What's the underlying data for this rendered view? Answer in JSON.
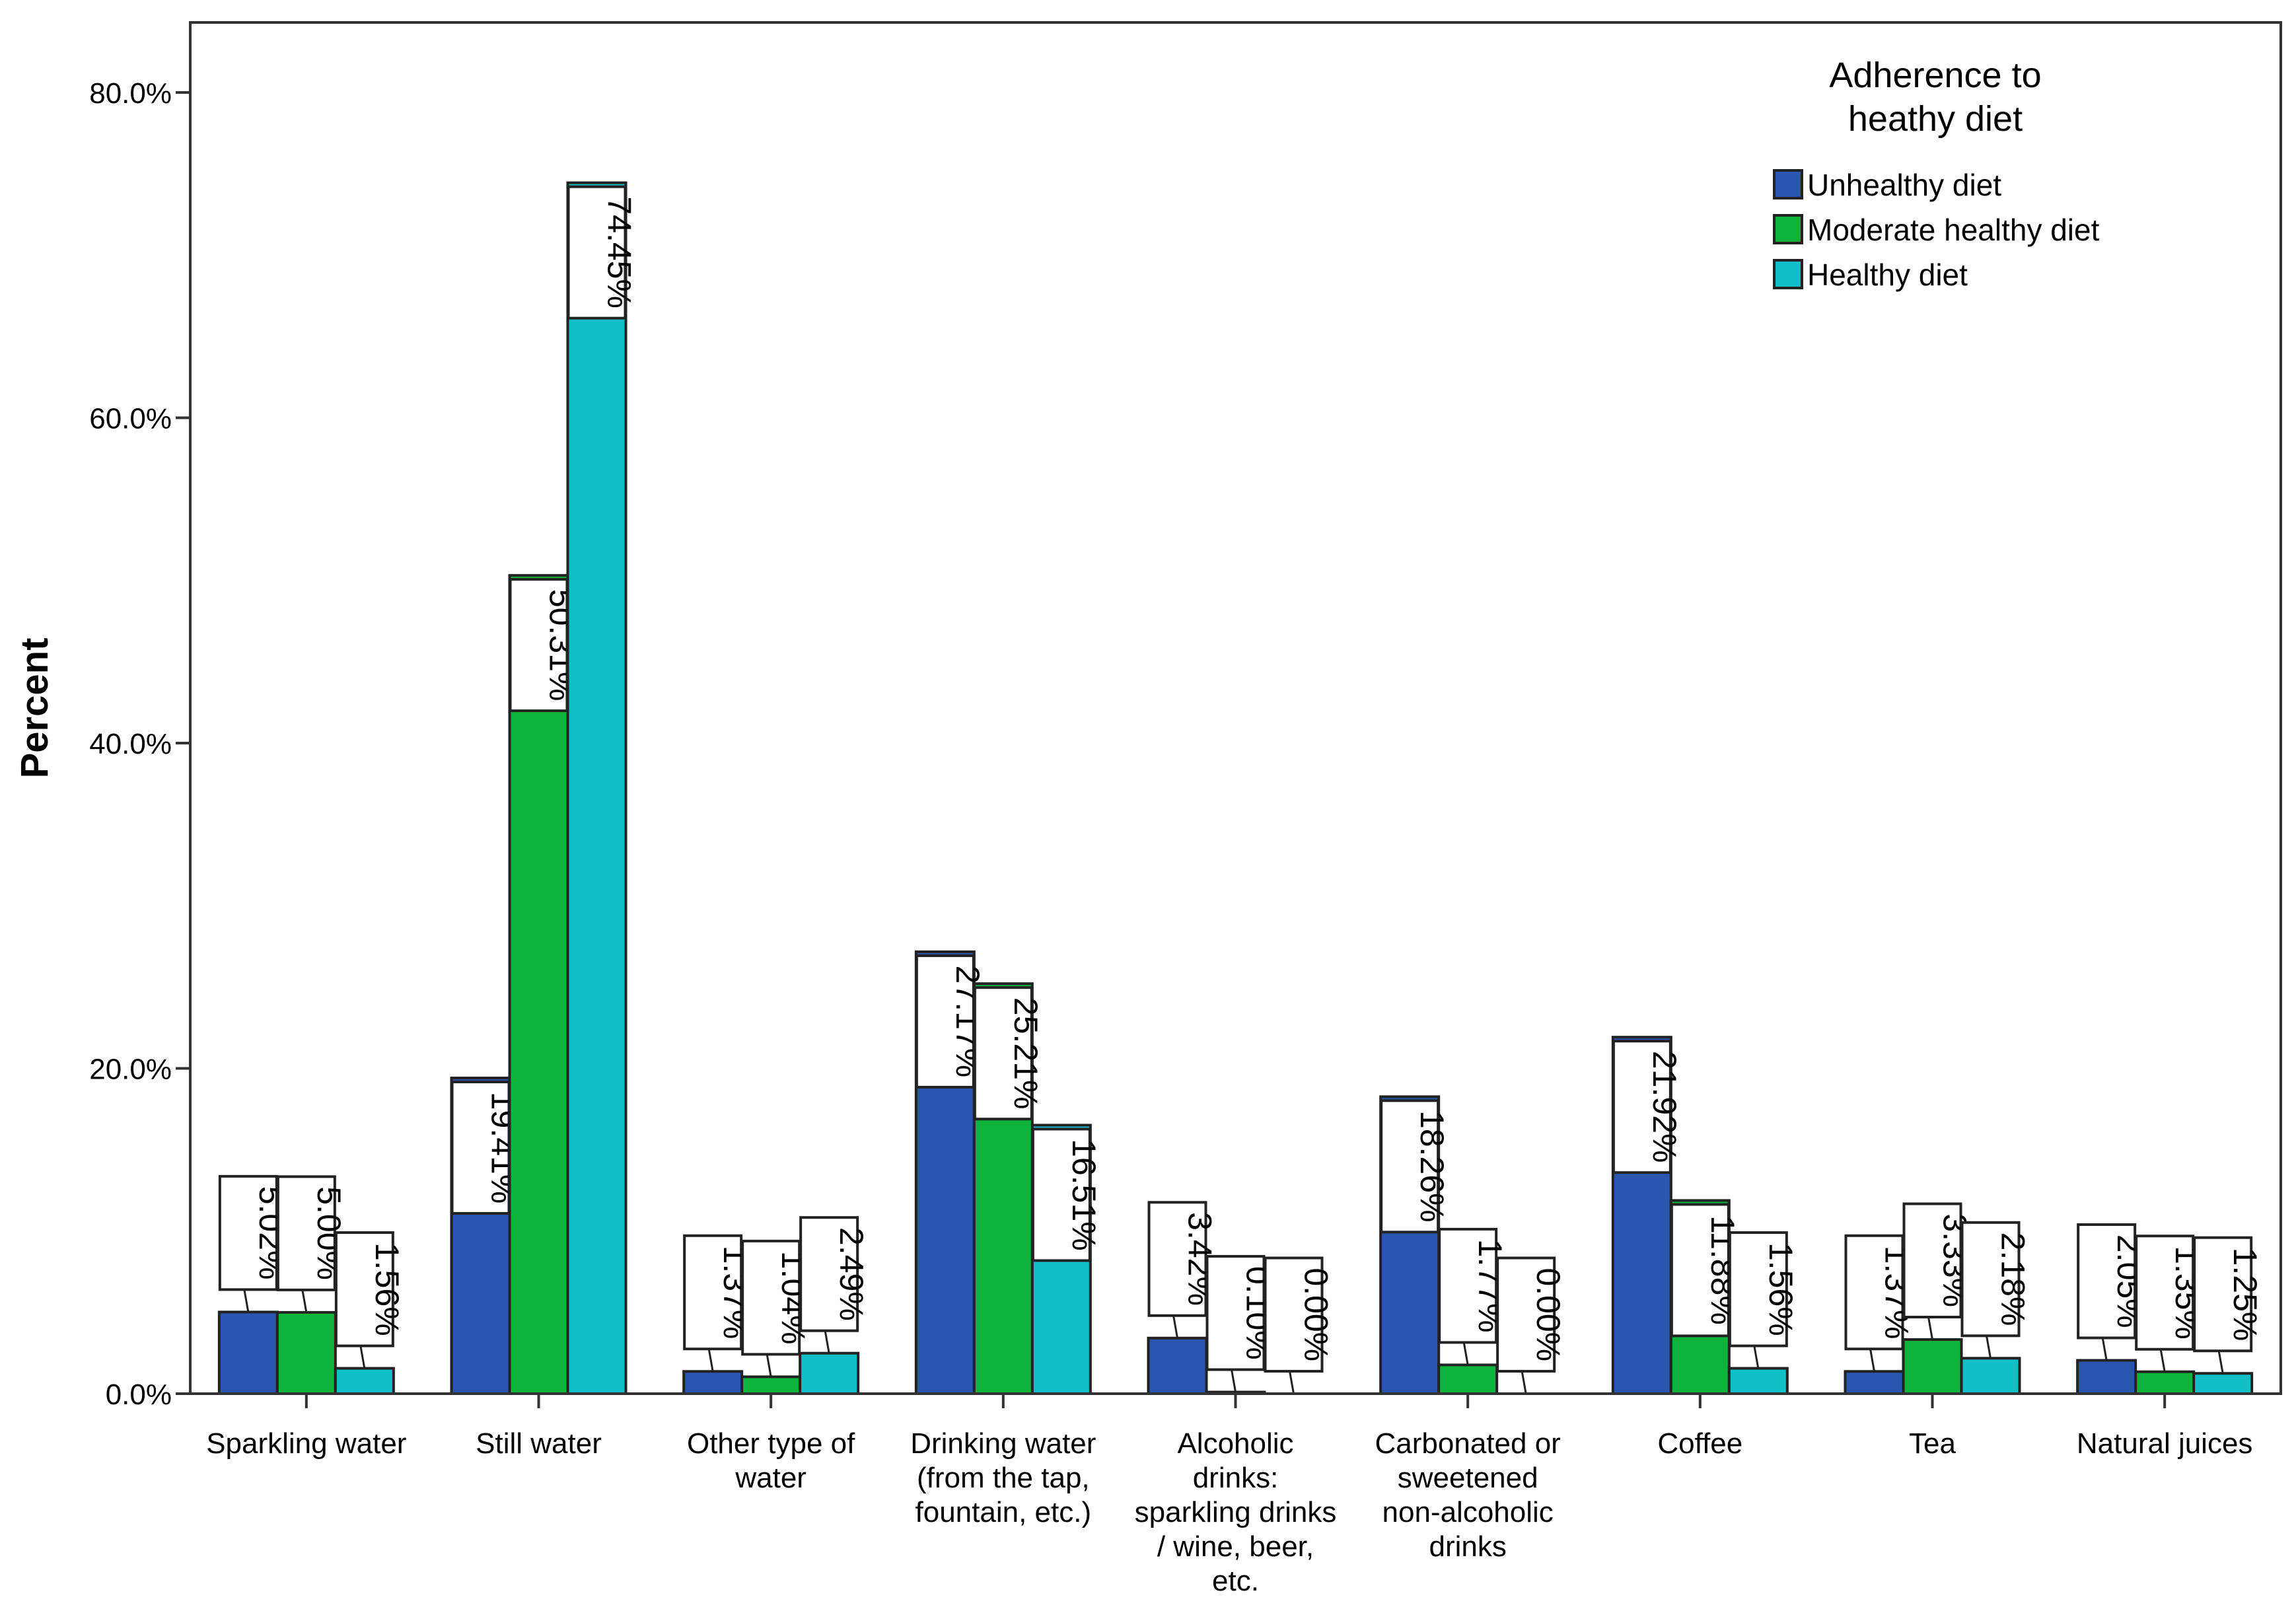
{
  "chart_data": {
    "type": "bar",
    "title": "",
    "xlabel": "",
    "ylabel": "Percent",
    "ylim": [
      0,
      80
    ],
    "yticks": [
      {
        "value": 0,
        "label": "0.0%"
      },
      {
        "value": 20,
        "label": "20.0%"
      },
      {
        "value": 40,
        "label": "40.0%"
      },
      {
        "value": 60,
        "label": "60.0%"
      },
      {
        "value": 80,
        "label": "80.0%"
      }
    ],
    "grid": false,
    "legend_title": [
      "Adherence to",
      "heathy diet"
    ],
    "legend_position": "top-right",
    "categories": [
      [
        "Sparkling water"
      ],
      [
        "Still water"
      ],
      [
        "Other type of",
        "water"
      ],
      [
        "Drinking water",
        "(from the tap,",
        "fountain, etc.)"
      ],
      [
        "Alcoholic",
        "drinks:",
        "sparkling drinks",
        "/ wine, beer,",
        "etc."
      ],
      [
        "Carbonated or",
        "sweetened",
        "non-alcoholic",
        "drinks"
      ],
      [
        "Coffee"
      ],
      [
        "Tea"
      ],
      [
        "Natural juices"
      ]
    ],
    "series": [
      {
        "name": "Unhealthy diet",
        "color": "#2b56b0",
        "values": [
          5.02,
          19.41,
          1.37,
          27.17,
          3.42,
          18.26,
          21.92,
          1.37,
          2.05
        ],
        "labels": [
          "5.02%",
          "19.41%",
          "1.37%",
          "27.17%",
          "3.42%",
          "18.26%",
          "21.92%",
          "1.37%",
          "2.05%"
        ]
      },
      {
        "name": "Moderate healthy diet",
        "color": "#0db33b",
        "values": [
          5.0,
          50.31,
          1.04,
          25.21,
          0.1,
          1.77,
          11.88,
          3.33,
          1.35
        ],
        "labels": [
          "5.00%",
          "50.31%",
          "1.04%",
          "25.21%",
          "0.10%",
          "1.77%",
          "11.88%",
          "3.33%",
          "1.35%"
        ]
      },
      {
        "name": "Healthy diet",
        "color": "#11bfc6",
        "values": [
          1.56,
          74.45,
          2.49,
          16.51,
          0.0,
          0.0,
          1.56,
          2.18,
          1.25
        ],
        "labels": [
          "1.56%",
          "74.45%",
          "2.49%",
          "16.51%",
          "0.00%",
          "0.00%",
          "1.56%",
          "2.18%",
          "1.25%"
        ]
      }
    ]
  }
}
